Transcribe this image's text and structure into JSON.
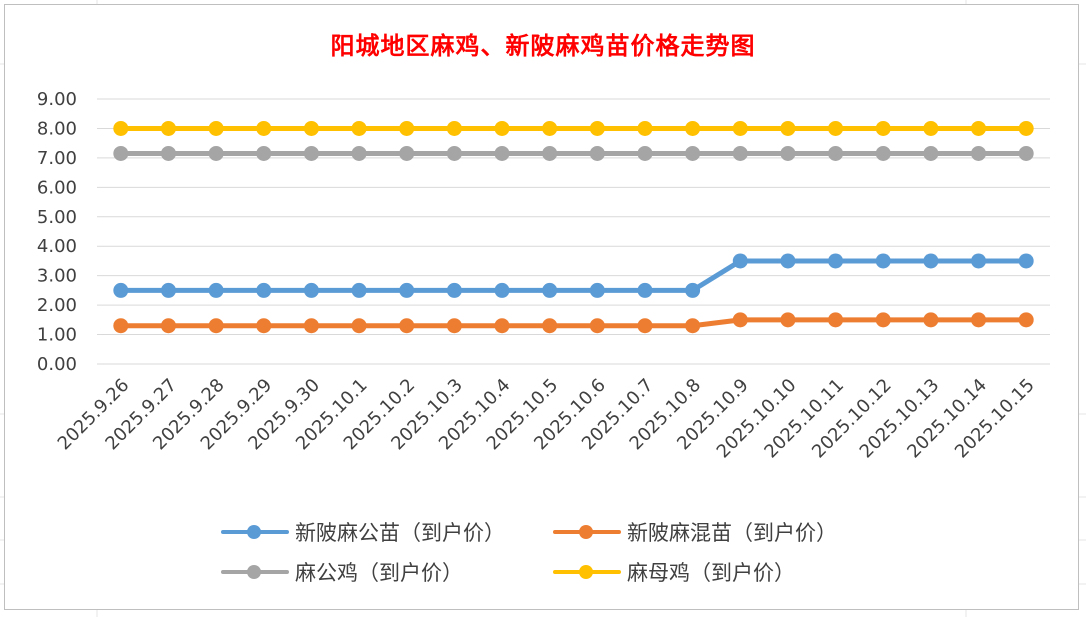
{
  "chart_data": {
    "type": "line",
    "title": "阳城地区麻鸡、新陂麻鸡苗价格走势图",
    "categories": [
      "2025.9.26",
      "2025.9.27",
      "2025.9.28",
      "2025.9.29",
      "2025.9.30",
      "2025.10.1",
      "2025.10.2",
      "2025.10.3",
      "2025.10.4",
      "2025.10.5",
      "2025.10.6",
      "2025.10.7",
      "2025.10.8",
      "2025.10.9",
      "2025.10.10",
      "2025.10.11",
      "2025.10.12",
      "2025.10.13",
      "2025.10.14",
      "2025.10.15"
    ],
    "ylim": [
      0,
      9
    ],
    "yticks": [
      "0.00",
      "1.00",
      "2.00",
      "3.00",
      "4.00",
      "5.00",
      "6.00",
      "7.00",
      "8.00",
      "9.00"
    ],
    "grid": true,
    "legend_position": "bottom",
    "series": [
      {
        "name": "新陂麻公苗（到户价）",
        "color": "#5b9bd5",
        "values": [
          2.5,
          2.5,
          2.5,
          2.5,
          2.5,
          2.5,
          2.5,
          2.5,
          2.5,
          2.5,
          2.5,
          2.5,
          2.5,
          3.5,
          3.5,
          3.5,
          3.5,
          3.5,
          3.5,
          3.5
        ]
      },
      {
        "name": "新陂麻混苗（到户价）",
        "color": "#ed7d31",
        "values": [
          1.3,
          1.3,
          1.3,
          1.3,
          1.3,
          1.3,
          1.3,
          1.3,
          1.3,
          1.3,
          1.3,
          1.3,
          1.3,
          1.5,
          1.5,
          1.5,
          1.5,
          1.5,
          1.5,
          1.5
        ]
      },
      {
        "name": "麻公鸡（到户价）",
        "color": "#a5a5a5",
        "values": [
          7.15,
          7.15,
          7.15,
          7.15,
          7.15,
          7.15,
          7.15,
          7.15,
          7.15,
          7.15,
          7.15,
          7.15,
          7.15,
          7.15,
          7.15,
          7.15,
          7.15,
          7.15,
          7.15,
          7.15
        ]
      },
      {
        "name": "麻母鸡（到户价）",
        "color": "#ffc000",
        "values": [
          8,
          8,
          8,
          8,
          8,
          8,
          8,
          8,
          8,
          8,
          8,
          8,
          8,
          8,
          8,
          8,
          8,
          8,
          8,
          8
        ]
      }
    ]
  }
}
